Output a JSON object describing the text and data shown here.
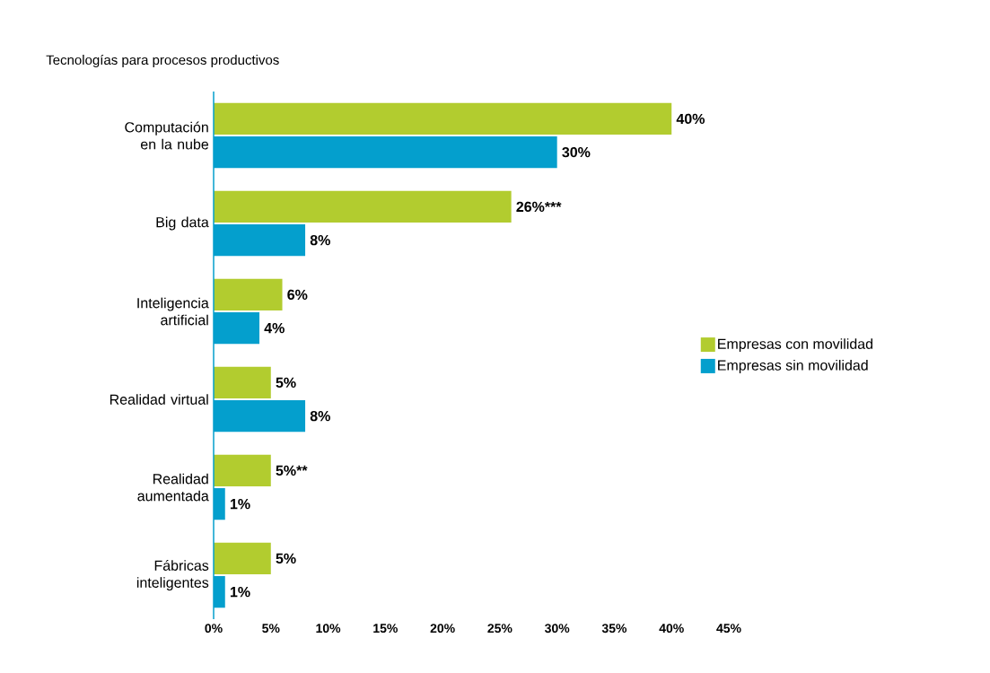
{
  "chart_data": {
    "type": "bar",
    "orientation": "horizontal",
    "title": "Tecnologías para procesos productivos",
    "categories": [
      "Computación en la nube",
      "Big data",
      "Inteligencia artificial",
      "Realidad virtual",
      "Realidad aumentada",
      "Fábricas inteligentes"
    ],
    "series": [
      {
        "name": "Empresas con movilidad",
        "color": "#b2cc2f",
        "values": [
          40,
          26,
          6,
          5,
          5,
          5
        ],
        "value_labels": [
          "40%",
          "26%***",
          "6%",
          "5%",
          "5%**",
          "5%"
        ]
      },
      {
        "name": "Empresas sin movilidad",
        "color": "#049fcd",
        "values": [
          30,
          8,
          4,
          8,
          1,
          1
        ],
        "value_labels": [
          "30%",
          "8%",
          "4%",
          "8%",
          "1%",
          "1%"
        ]
      }
    ],
    "xlim": [
      0,
      45
    ],
    "xticks": [
      {
        "value": 0,
        "label": "0%"
      },
      {
        "value": 5,
        "label": "5%"
      },
      {
        "value": 10,
        "label": "10%"
      },
      {
        "value": 15,
        "label": "15%"
      },
      {
        "value": 20,
        "label": "20%"
      },
      {
        "value": 25,
        "label": "25%"
      },
      {
        "value": 30,
        "label": "30%"
      },
      {
        "value": 35,
        "label": "35%"
      },
      {
        "value": 40,
        "label": "40%"
      },
      {
        "value": 45,
        "label": "45%"
      }
    ],
    "legend": "right"
  }
}
